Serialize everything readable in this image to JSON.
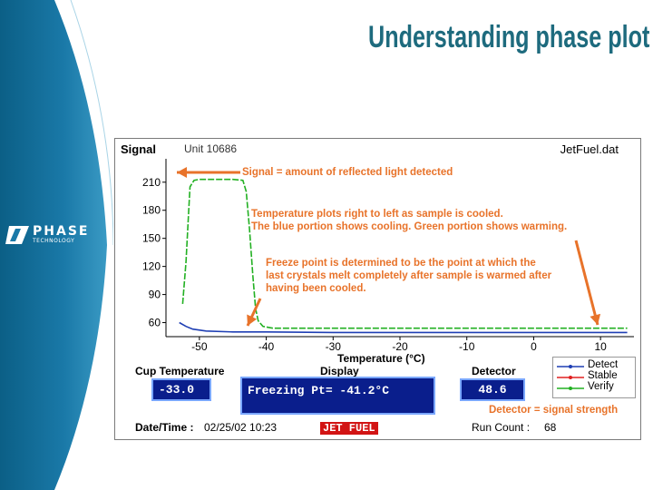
{
  "slide": {
    "title": "Understanding phase plot",
    "logo_word": "PHASE",
    "logo_sub": "TECHNOLOGY"
  },
  "panel": {
    "signal_label": "Signal",
    "unit_label": "Unit 10686",
    "file_label": "JetFuel.dat",
    "cup_temp_label": "Cup Temperature",
    "cup_temp_value": "-33.0",
    "display_label": "Display",
    "display_value": "Freezing Pt= -41.2°C",
    "detector_label": "Detector",
    "detector_value": "48.6",
    "datetime_label": "Date/Time :",
    "datetime_value": "02/25/02 10:23",
    "fuel_badge": "JET FUEL",
    "runcount_label": "Run Count :",
    "runcount_value": "68"
  },
  "annotations": {
    "signal_note": "Signal = amount of reflected light detected",
    "temp_note_1": "Temperature plots right to left as sample is cooled.",
    "temp_note_2": "The blue portion  shows cooling. Green portion shows  warming.",
    "freeze_note_1": "Freeze point is determined to be the point at which the",
    "freeze_note_2": "last crystals melt completely after sample is warmed after",
    "freeze_note_3": "having been cooled.",
    "detector_note": "Detector = signal strength"
  },
  "colors": {
    "sidebar_dark": "#0b5f86",
    "sidebar_light": "#3a9ac4",
    "title": "#1e6b7e",
    "annotation": "#e8732a",
    "detect": "#1f3fb4",
    "stable": "#e02020",
    "verify": "#22b022",
    "readout_bg": "#0a1e8c"
  },
  "chart_data": {
    "type": "line",
    "title": "",
    "xlabel": "Temperature (°C)",
    "ylabel": "Signal",
    "xlim": [
      -55,
      15
    ],
    "ylim": [
      45,
      235
    ],
    "xticks": [
      -50,
      -40,
      -30,
      -20,
      -10,
      0,
      10
    ],
    "yticks": [
      60,
      90,
      120,
      150,
      180,
      210
    ],
    "grid": false,
    "legend": "bottom-right",
    "series": [
      {
        "name": "Detect",
        "color": "#1f3fb4",
        "points": [
          [
            -53.0,
            60
          ],
          [
            -52.0,
            56
          ],
          [
            -51.0,
            53
          ],
          [
            -49.0,
            51
          ],
          [
            -45.0,
            50
          ],
          [
            -40.0,
            50
          ],
          [
            -30.0,
            49.5
          ],
          [
            -20.0,
            49.5
          ],
          [
            -10.0,
            49.5
          ],
          [
            0.0,
            49.5
          ],
          [
            10.0,
            49.5
          ],
          [
            14.0,
            49.5
          ]
        ]
      },
      {
        "name": "Stable",
        "color": "#e02020",
        "points": []
      },
      {
        "name": "Verify",
        "color": "#22b022",
        "points": [
          [
            -52.5,
            80
          ],
          [
            -52.0,
            125
          ],
          [
            -51.6,
            180
          ],
          [
            -51.4,
            205
          ],
          [
            -50.8,
            212
          ],
          [
            -50.0,
            213
          ],
          [
            -47.0,
            213
          ],
          [
            -45.0,
            213
          ],
          [
            -43.5,
            212
          ],
          [
            -43.0,
            200
          ],
          [
            -42.5,
            160
          ],
          [
            -42.0,
            110
          ],
          [
            -41.6,
            75
          ],
          [
            -41.2,
            62
          ],
          [
            -40.5,
            56
          ],
          [
            -39.0,
            54
          ],
          [
            -37.0,
            54
          ],
          [
            -30.0,
            54
          ],
          [
            -20.0,
            54
          ],
          [
            -10.0,
            54
          ],
          [
            0.0,
            54
          ],
          [
            10.0,
            54
          ],
          [
            14.0,
            54
          ]
        ]
      }
    ]
  }
}
